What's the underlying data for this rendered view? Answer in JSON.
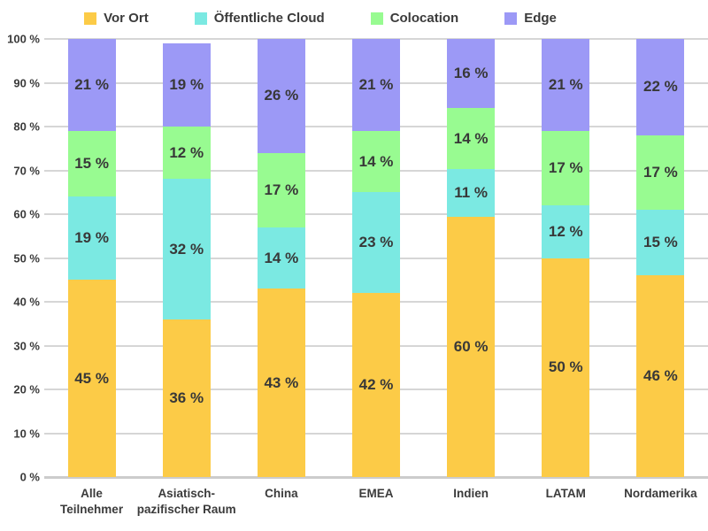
{
  "colors": {
    "vor_ort": "#FCCB47",
    "oeffentliche_cloud": "#7BE9E2",
    "colocation": "#98FB91",
    "edge": "#9C99F6",
    "gridline": "#D6D6D6",
    "baseline": "#CCCCCC",
    "label_text": "#3B3B3B"
  },
  "chart_data": {
    "type": "bar",
    "subtype": "stacked-100-percent",
    "title": "",
    "xlabel": "",
    "ylabel": "",
    "ylim": [
      0,
      100
    ],
    "grid": true,
    "legend_position": "top",
    "value_suffix": " %",
    "ytick_labels": [
      "0 %",
      "10 %",
      "20 %",
      "30 %",
      "40 %",
      "50 %",
      "60 %",
      "70 %",
      "80 %",
      "90 %",
      "100 %"
    ],
    "ytick_values": [
      0,
      10,
      20,
      30,
      40,
      50,
      60,
      70,
      80,
      90,
      100
    ],
    "categories": [
      "Alle Teilnehmer",
      "Asiatisch-pazifischer Raum",
      "China",
      "EMEA",
      "Indien",
      "LATAM",
      "Nordamerika"
    ],
    "category_label_lines": [
      [
        "Alle",
        "Teilnehmer"
      ],
      [
        "Asiatisch-",
        "pazifischer Raum"
      ],
      [
        "China"
      ],
      [
        "EMEA"
      ],
      [
        "Indien"
      ],
      [
        "LATAM"
      ],
      [
        "Nordamerika"
      ]
    ],
    "series": [
      {
        "name": "Vor Ort",
        "color_key": "vor_ort",
        "values": [
          45,
          36,
          43,
          42,
          60,
          50,
          46
        ]
      },
      {
        "name": "Öffentliche Cloud",
        "color_key": "oeffentliche_cloud",
        "values": [
          19,
          32,
          14,
          23,
          11,
          12,
          15
        ]
      },
      {
        "name": "Colocation",
        "color_key": "colocation",
        "values": [
          15,
          12,
          17,
          14,
          14,
          17,
          17
        ]
      },
      {
        "name": "Edge",
        "color_key": "edge",
        "values": [
          21,
          19,
          26,
          21,
          16,
          21,
          22
        ]
      }
    ]
  }
}
